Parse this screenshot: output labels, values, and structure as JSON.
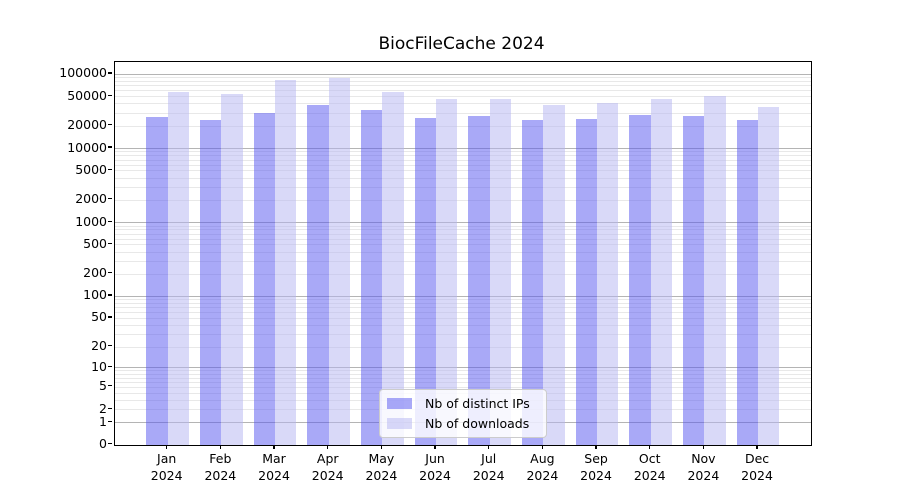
{
  "chart_data": {
    "type": "bar",
    "title": "BiocFileCache 2024",
    "categories": [
      "Jan 2024",
      "Feb 2024",
      "Mar 2024",
      "Apr 2024",
      "May 2024",
      "Jun 2024",
      "Jul 2024",
      "Aug 2024",
      "Sep 2024",
      "Oct 2024",
      "Nov 2024",
      "Dec 2024"
    ],
    "series": [
      {
        "name": "Nb of distinct IPs",
        "fill": "rgba(83,83,239,0.5)",
        "display_hex": "#a9a9f7",
        "values": [
          26500,
          24100,
          29900,
          38200,
          33000,
          25500,
          27100,
          24200,
          24400,
          27800,
          26900,
          23600
        ]
      },
      {
        "name": "Nb of downloads",
        "fill": "rgba(179,179,241,0.5)",
        "display_hex": "#d9d9f8",
        "values": [
          56500,
          53500,
          84200,
          87400,
          56500,
          45600,
          45800,
          37800,
          40300,
          46400,
          50000,
          35900
        ]
      }
    ],
    "yscale": "log10(1+x)",
    "ylim": [
      0,
      145000
    ],
    "ytick_values": [
      100000,
      50000,
      20000,
      10000,
      5000,
      2000,
      1000,
      500,
      200,
      100,
      50,
      20,
      10,
      5,
      2,
      1,
      0
    ],
    "ytick_labels": [
      "100000",
      "50000",
      "20000",
      "10000",
      "5000",
      "2000",
      "1000",
      "500",
      "200",
      "100",
      "50",
      "20",
      "10",
      "5",
      "2",
      "1",
      "0"
    ],
    "grid": "horizontal gridlines, darker at powers of 10, light minors 2-9 per decade",
    "legend_position": "lower center",
    "colors": {
      "grid_major": "#b4b4b4",
      "grid_minor": "#e8e8e8",
      "axis": "#000000",
      "text": "#000000",
      "legend_border": "#cccccc",
      "background": "#ffffff"
    }
  }
}
